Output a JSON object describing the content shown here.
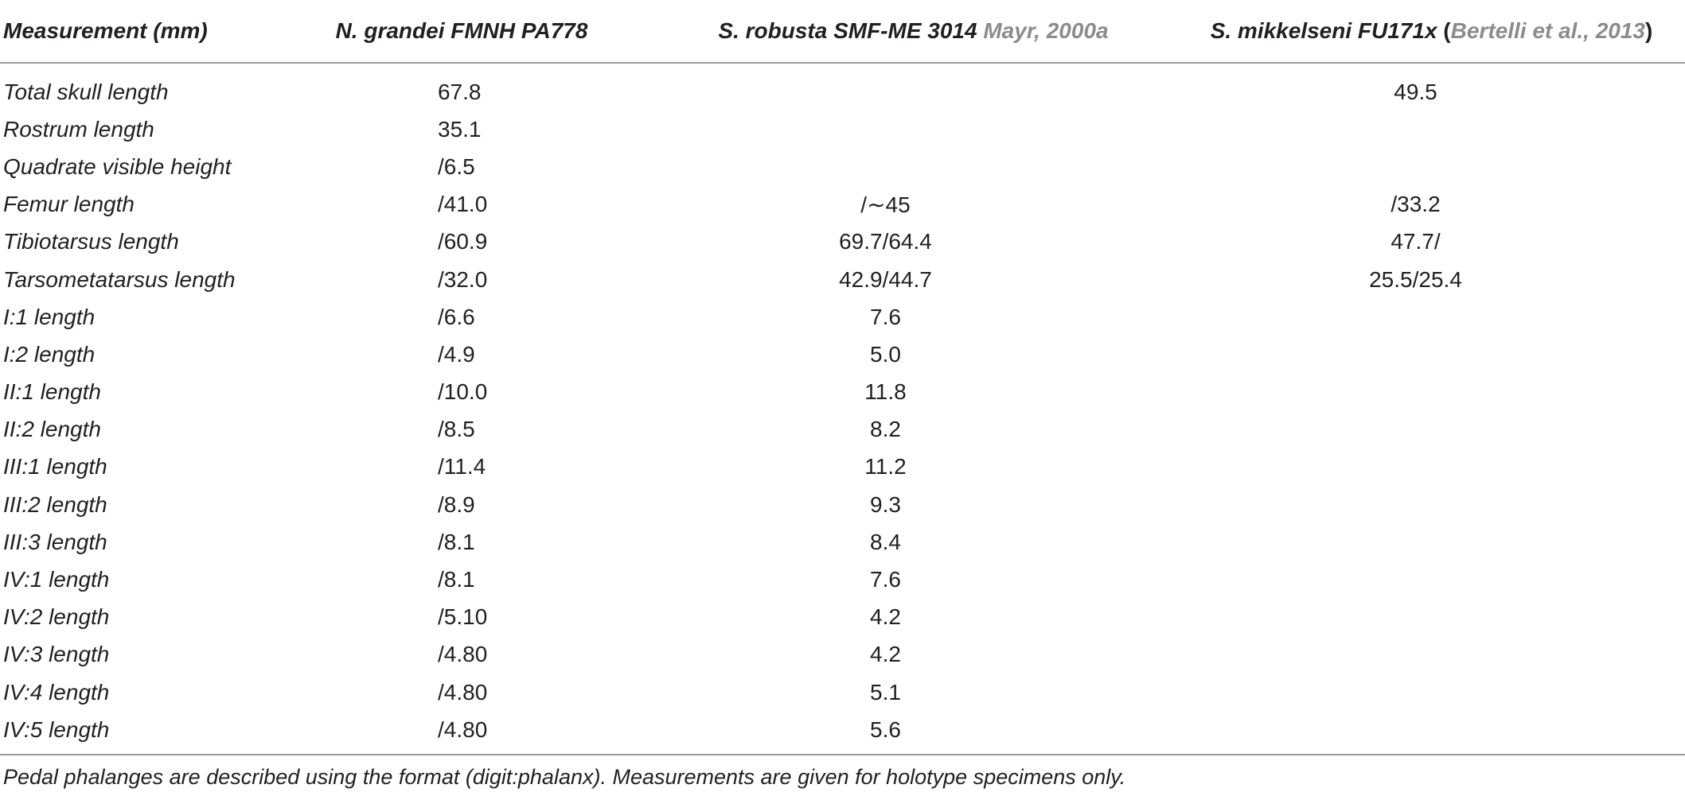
{
  "header": {
    "col0": "Measurement (mm)",
    "col1": "N. grandei FMNH PA778",
    "col2_species": "S. robusta SMF-ME 3014",
    "col2_citation": "Mayr, 2000a",
    "col3_species": "S. mikkelseni FU171x",
    "col3_open": "(",
    "col3_citation": "Bertelli et al., 2013",
    "col3_close": ")"
  },
  "rows": [
    {
      "label": "Total skull length",
      "grandei": "67.8",
      "robusta": "",
      "mikkelseni": "49.5"
    },
    {
      "label": "Rostrum length",
      "grandei": "35.1",
      "robusta": "",
      "mikkelseni": ""
    },
    {
      "label": "Quadrate visible height",
      "grandei": "/6.5",
      "robusta": "",
      "mikkelseni": ""
    },
    {
      "label": "Femur length",
      "grandei": "/41.0",
      "robusta": "/∼45",
      "mikkelseni": "/33.2"
    },
    {
      "label": "Tibiotarsus length",
      "grandei": "/60.9",
      "robusta": "69.7/64.4",
      "mikkelseni": "47.7/"
    },
    {
      "label": "Tarsometatarsus length",
      "grandei": "/32.0",
      "robusta": "42.9/44.7",
      "mikkelseni": "25.5/25.4"
    },
    {
      "label": "I:1 length",
      "grandei": "/6.6",
      "robusta": "7.6",
      "mikkelseni": ""
    },
    {
      "label": "I:2 length",
      "grandei": "/4.9",
      "robusta": "5.0",
      "mikkelseni": ""
    },
    {
      "label": "II:1 length",
      "grandei": "/10.0",
      "robusta": "11.8",
      "mikkelseni": ""
    },
    {
      "label": "II:2 length",
      "grandei": "/8.5",
      "robusta": "8.2",
      "mikkelseni": ""
    },
    {
      "label": "III:1 length",
      "grandei": "/11.4",
      "robusta": "11.2",
      "mikkelseni": ""
    },
    {
      "label": "III:2 length",
      "grandei": "/8.9",
      "robusta": "9.3",
      "mikkelseni": ""
    },
    {
      "label": "III:3 length",
      "grandei": "/8.1",
      "robusta": "8.4",
      "mikkelseni": ""
    },
    {
      "label": "IV:1 length",
      "grandei": "/8.1",
      "robusta": "7.6",
      "mikkelseni": ""
    },
    {
      "label": "IV:2 length",
      "grandei": "/5.10",
      "robusta": "4.2",
      "mikkelseni": ""
    },
    {
      "label": "IV:3 length",
      "grandei": "/4.80",
      "robusta": "4.2",
      "mikkelseni": ""
    },
    {
      "label": "IV:4 length",
      "grandei": "/4.80",
      "robusta": "5.1",
      "mikkelseni": ""
    },
    {
      "label": "IV:5 length",
      "grandei": "/4.80",
      "robusta": "5.6",
      "mikkelseni": ""
    }
  ],
  "footnote": "Pedal phalanges are described using the format (digit:phalanx). Measurements are given for holotype specimens only.",
  "colors": {
    "text": "#231f20",
    "citation": "#8c8c8c",
    "rule": "#9a9a9a"
  }
}
